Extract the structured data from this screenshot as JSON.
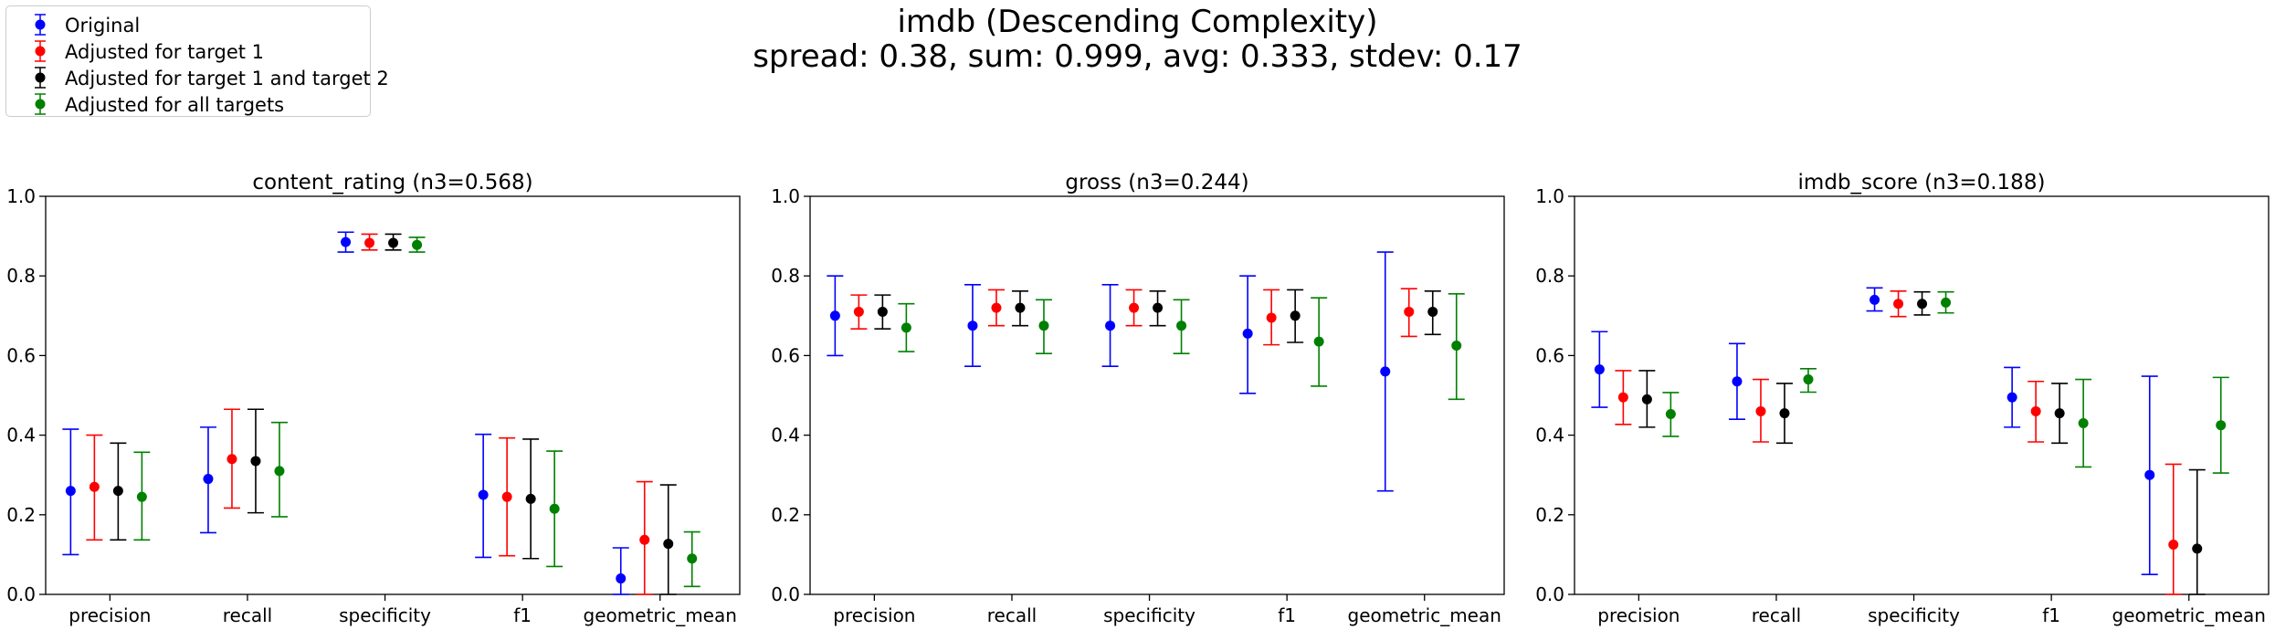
{
  "figure": {
    "title_line1": "imdb (Descending Complexity)",
    "title_line2": "spread: 0.38, sum: 0.999, avg: 0.333, stdev: 0.17"
  },
  "legend": [
    {
      "label": "Original",
      "color": "#0000ff"
    },
    {
      "label": "Adjusted for target 1",
      "color": "#ff0000"
    },
    {
      "label": "Adjusted for target 1 and target 2",
      "color": "#000000"
    },
    {
      "label": "Adjusted for all targets",
      "color": "#008000"
    }
  ],
  "chart_data": [
    {
      "type": "scatter",
      "title": "content_rating (n3=0.568)",
      "categories": [
        "precision",
        "recall",
        "specificity",
        "f1",
        "geometric_mean"
      ],
      "ylim": [
        0,
        1.0
      ],
      "yticks": [
        "0.0",
        "0.2",
        "0.4",
        "0.6",
        "0.8",
        "1.0"
      ],
      "error_bars": true,
      "series": [
        {
          "name": "Original",
          "color": "#0000ff",
          "values": [
            0.26,
            0.29,
            0.885,
            0.25,
            0.04
          ],
          "lower": [
            0.1,
            0.155,
            0.86,
            0.093,
            0.0
          ],
          "upper": [
            0.415,
            0.42,
            0.91,
            0.402,
            0.117
          ]
        },
        {
          "name": "Adjusted for target 1",
          "color": "#ff0000",
          "values": [
            0.27,
            0.34,
            0.883,
            0.245,
            0.137
          ],
          "lower": [
            0.137,
            0.217,
            0.865,
            0.097,
            0.0
          ],
          "upper": [
            0.4,
            0.465,
            0.905,
            0.393,
            0.283
          ]
        },
        {
          "name": "Adjusted for target 1 and target 2",
          "color": "#000000",
          "values": [
            0.26,
            0.335,
            0.883,
            0.24,
            0.127
          ],
          "lower": [
            0.137,
            0.205,
            0.865,
            0.09,
            0.0
          ],
          "upper": [
            0.38,
            0.465,
            0.905,
            0.39,
            0.275
          ]
        },
        {
          "name": "Adjusted for all targets",
          "color": "#008000",
          "values": [
            0.245,
            0.31,
            0.878,
            0.215,
            0.09
          ],
          "lower": [
            0.137,
            0.195,
            0.86,
            0.07,
            0.02
          ],
          "upper": [
            0.357,
            0.432,
            0.897,
            0.36,
            0.157
          ]
        }
      ]
    },
    {
      "type": "scatter",
      "title": "gross (n3=0.244)",
      "categories": [
        "precision",
        "recall",
        "specificity",
        "f1",
        "geometric_mean"
      ],
      "ylim": [
        0,
        1.0
      ],
      "yticks": [
        "0.0",
        "0.2",
        "0.4",
        "0.6",
        "0.8",
        "1.0"
      ],
      "error_bars": true,
      "series": [
        {
          "name": "Original",
          "color": "#0000ff",
          "values": [
            0.7,
            0.675,
            0.675,
            0.655,
            0.56
          ],
          "lower": [
            0.6,
            0.573,
            0.573,
            0.505,
            0.26
          ],
          "upper": [
            0.8,
            0.778,
            0.778,
            0.8,
            0.86
          ]
        },
        {
          "name": "Adjusted for target 1",
          "color": "#ff0000",
          "values": [
            0.71,
            0.72,
            0.72,
            0.695,
            0.71
          ],
          "lower": [
            0.667,
            0.675,
            0.675,
            0.627,
            0.648
          ],
          "upper": [
            0.752,
            0.765,
            0.765,
            0.765,
            0.768
          ]
        },
        {
          "name": "Adjusted for target 1 and target 2",
          "color": "#000000",
          "values": [
            0.71,
            0.72,
            0.72,
            0.7,
            0.71
          ],
          "lower": [
            0.667,
            0.675,
            0.675,
            0.633,
            0.653
          ],
          "upper": [
            0.752,
            0.762,
            0.762,
            0.765,
            0.762
          ]
        },
        {
          "name": "Adjusted for all targets",
          "color": "#008000",
          "values": [
            0.67,
            0.675,
            0.675,
            0.635,
            0.625
          ],
          "lower": [
            0.61,
            0.605,
            0.605,
            0.523,
            0.49
          ],
          "upper": [
            0.73,
            0.74,
            0.74,
            0.745,
            0.755
          ]
        }
      ]
    },
    {
      "type": "scatter",
      "title": "imdb_score (n3=0.188)",
      "categories": [
        "precision",
        "recall",
        "specificity",
        "f1",
        "geometric_mean"
      ],
      "ylim": [
        0,
        1.0
      ],
      "yticks": [
        "0.0",
        "0.2",
        "0.4",
        "0.6",
        "0.8",
        "1.0"
      ],
      "error_bars": true,
      "series": [
        {
          "name": "Original",
          "color": "#0000ff",
          "values": [
            0.565,
            0.535,
            0.74,
            0.495,
            0.3
          ],
          "lower": [
            0.47,
            0.44,
            0.712,
            0.42,
            0.05
          ],
          "upper": [
            0.66,
            0.63,
            0.77,
            0.57,
            0.548
          ]
        },
        {
          "name": "Adjusted for target 1",
          "color": "#ff0000",
          "values": [
            0.495,
            0.46,
            0.73,
            0.46,
            0.125
          ],
          "lower": [
            0.427,
            0.383,
            0.698,
            0.383,
            0.0
          ],
          "upper": [
            0.562,
            0.54,
            0.762,
            0.535,
            0.327
          ]
        },
        {
          "name": "Adjusted for target 1 and target 2",
          "color": "#000000",
          "values": [
            0.49,
            0.455,
            0.73,
            0.455,
            0.115
          ],
          "lower": [
            0.42,
            0.38,
            0.702,
            0.38,
            0.0
          ],
          "upper": [
            0.562,
            0.53,
            0.76,
            0.53,
            0.313
          ]
        },
        {
          "name": "Adjusted for all targets",
          "color": "#008000",
          "values": [
            0.453,
            0.54,
            0.733,
            0.43,
            0.425
          ],
          "lower": [
            0.397,
            0.508,
            0.707,
            0.32,
            0.305
          ],
          "upper": [
            0.507,
            0.567,
            0.76,
            0.54,
            0.545
          ]
        }
      ]
    }
  ]
}
